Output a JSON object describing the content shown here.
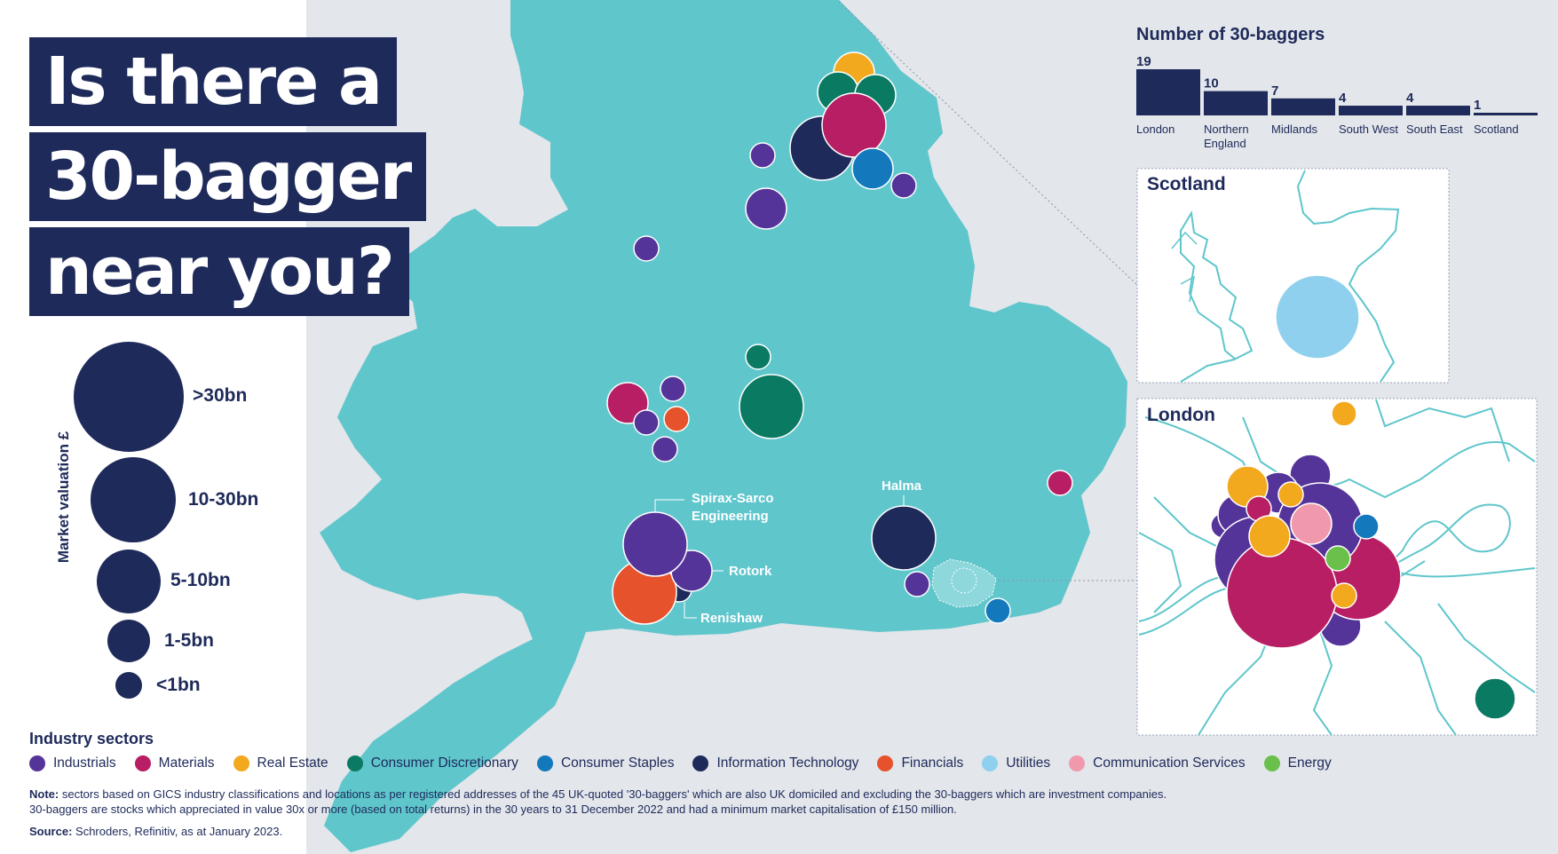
{
  "title": {
    "line1": "Is there a",
    "line2": "30-bagger",
    "line3": "near you?"
  },
  "size_legend": {
    "axis_label": "Market valuation £",
    "items": [
      ">30bn",
      "10-30bn",
      "5-10bn",
      "1-5bn",
      "<1bn"
    ]
  },
  "chart_data": {
    "type": "bar",
    "title": "Number of 30-baggers",
    "categories": [
      "London",
      "Northern England",
      "Midlands",
      "South West",
      "South East",
      "Scotland"
    ],
    "category_lines": [
      [
        "London"
      ],
      [
        "Northern",
        "England"
      ],
      [
        "Midlands"
      ],
      [
        "South West"
      ],
      [
        "South East"
      ],
      [
        "Scotland"
      ]
    ],
    "values": [
      19,
      10,
      7,
      4,
      4,
      1
    ],
    "color": "#1e2a5a"
  },
  "insets": {
    "scotland": "Scotland",
    "london": "London"
  },
  "map_labels": {
    "spirax_line1": "Spirax-Sarco",
    "spirax_line2": "Engineering",
    "rotork": "Rotork",
    "renishaw": "Renishaw",
    "halma": "Halma"
  },
  "sectors": {
    "title": "Industry sectors",
    "items": [
      {
        "label": "Industrials",
        "color": "#55349a"
      },
      {
        "label": "Materials",
        "color": "#b81e63"
      },
      {
        "label": "Real Estate",
        "color": "#f2a91e"
      },
      {
        "label": "Consumer Discretionary",
        "color": "#0b7a62"
      },
      {
        "label": "Consumer Staples",
        "color": "#1478bd"
      },
      {
        "label": "Information Technology",
        "color": "#1e2a5a"
      },
      {
        "label": "Financials",
        "color": "#e5522b"
      },
      {
        "label": "Utilities",
        "color": "#8ed0ee"
      },
      {
        "label": "Communication Services",
        "color": "#f199ac"
      },
      {
        "label": "Energy",
        "color": "#6ac04b"
      }
    ]
  },
  "note": {
    "label": "Note:",
    "line1": "sectors based on GICS industry classifications and locations as per registered addresses of the 45 UK-quoted '30-baggers' which are also UK domiciled and excluding the 30-baggers which are investment companies.",
    "line2": "30-baggers are stocks which appreciated in value 30x or more (based on total returns) in the 30 years to 31 December 2022 and had a minimum market capitalisation of £150 million."
  },
  "source": {
    "label": "Source:",
    "text": "Schroders, Refinitiv, as at January 2023."
  },
  "colors": {
    "navy": "#1e2a5a",
    "land": "#5fc6cc",
    "background": "#e3e6ea"
  }
}
